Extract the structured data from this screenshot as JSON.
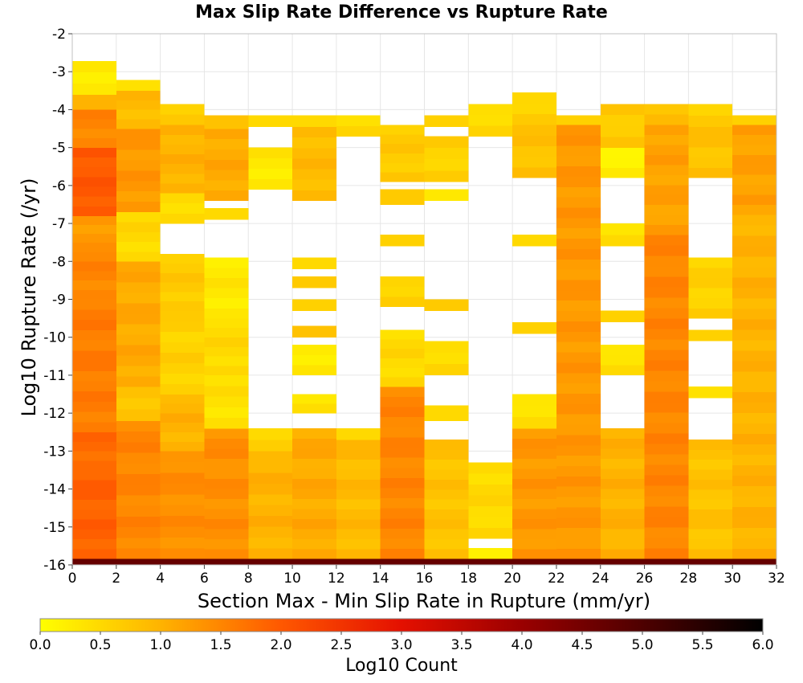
{
  "chart_data": {
    "type": "heatmap",
    "title": "Max Slip Rate Difference vs Rupture Rate",
    "xlabel": "Section Max - Min Slip Rate in Rupture (mm/yr)",
    "ylabel": "Log10 Rupture Rate (/yr)",
    "xlim": [
      0,
      32
    ],
    "ylim": [
      -16,
      -2
    ],
    "x_ticks": [
      "0",
      "2",
      "4",
      "6",
      "8",
      "10",
      "12",
      "14",
      "16",
      "18",
      "20",
      "22",
      "24",
      "26",
      "28",
      "30",
      "32"
    ],
    "y_ticks": [
      "-2",
      "-3",
      "-4",
      "-5",
      "-6",
      "-7",
      "-8",
      "-9",
      "-10",
      "-11",
      "-12",
      "-13",
      "-14",
      "-15",
      "-16"
    ],
    "x_bin_width": 2,
    "y_bin_height": 0.2727,
    "colorbar": {
      "label": "Log10 Count",
      "min": 0.0,
      "max": 6.0,
      "ticks": [
        "0.0",
        "0.5",
        "1.0",
        "1.5",
        "2.0",
        "2.5",
        "3.0",
        "3.5",
        "4.0",
        "4.5",
        "5.0",
        "5.5",
        "6.0"
      ],
      "colors": [
        "#ffff00",
        "#ffb300",
        "#ff5800",
        "#e41000",
        "#9a0000",
        "#4e0000",
        "#000000"
      ]
    },
    "grid": true,
    "columns": [
      {
        "x": 1,
        "cells": [
          {
            "y": [
              -16,
              -15.84
            ],
            "v": 4.7
          },
          {
            "y": [
              -15.84,
              -13.5
            ],
            "v": 1.9
          },
          {
            "y": [
              -13.5,
              -12.5
            ],
            "v": 1.8
          },
          {
            "y": [
              -12.5,
              -9.0
            ],
            "v": 1.6
          },
          {
            "y": [
              -9.0,
              -7.5
            ],
            "v": 1.5
          },
          {
            "y": [
              -7.5,
              -6.8
            ],
            "v": 1.3
          },
          {
            "y": [
              -6.8,
              -5.0
            ],
            "v": 2.0
          },
          {
            "y": [
              -5.0,
              -4.0
            ],
            "v": 1.5
          },
          {
            "y": [
              -4.0,
              -3.6
            ],
            "v": 1.0
          },
          {
            "y": [
              -3.6,
              -2.72
            ],
            "v": 0.3
          }
        ]
      },
      {
        "x": 3,
        "cells": [
          {
            "y": [
              -16,
              -15.84
            ],
            "v": 4.7
          },
          {
            "y": [
              -15.84,
              -12.2
            ],
            "v": 1.5
          },
          {
            "y": [
              -12.2,
              -11.3
            ],
            "v": 0.8
          },
          {
            "y": [
              -11.3,
              -8.0
            ],
            "v": 1.1
          },
          {
            "y": [
              -8.0,
              -6.7
            ],
            "v": 0.5
          },
          {
            "y": [
              -6.7,
              -4.5
            ],
            "v": 1.3
          },
          {
            "y": [
              -4.5,
              -3.5
            ],
            "v": 0.9
          },
          {
            "y": [
              -3.5,
              -3.22
            ],
            "v": 0.4
          }
        ]
      },
      {
        "x": 5,
        "cells": [
          {
            "y": [
              -16,
              -15.84
            ],
            "v": 4.7
          },
          {
            "y": [
              -15.84,
              -13.0
            ],
            "v": 1.4
          },
          {
            "y": [
              -13.0,
              -11.5
            ],
            "v": 1.0
          },
          {
            "y": [
              -11.5,
              -9.3
            ],
            "v": 0.6
          },
          {
            "y": [
              -9.3,
              -7.8
            ],
            "v": 0.7
          },
          {
            "y": [
              -7.8,
              -7.0
            ],
            "v": 0.2,
            "empty": true
          },
          {
            "y": [
              -7.0,
              -6.2
            ],
            "v": 0.5
          },
          {
            "y": [
              -6.2,
              -4.4
            ],
            "v": 1.0
          },
          {
            "y": [
              -4.4,
              -3.85
            ],
            "v": 0.7
          }
        ]
      },
      {
        "x": 7,
        "cells": [
          {
            "y": [
              -16,
              -15.84
            ],
            "v": 4.7
          },
          {
            "y": [
              -15.84,
              -12.4
            ],
            "v": 1.4
          },
          {
            "y": [
              -12.4,
              -11.0
            ],
            "v": 0.4
          },
          {
            "y": [
              -11.0,
              -9.5
            ],
            "v": 0.5
          },
          {
            "y": [
              -9.5,
              -7.9
            ],
            "v": 0.3
          },
          {
            "y": [
              -6.9,
              -6.6
            ],
            "v": 0.5
          },
          {
            "y": [
              -6.4,
              -4.5
            ],
            "v": 1.1
          },
          {
            "y": [
              -4.5,
              -4.15
            ],
            "v": 0.8
          }
        ]
      },
      {
        "x": 9,
        "cells": [
          {
            "y": [
              -16,
              -15.84
            ],
            "v": 4.7
          },
          {
            "y": [
              -15.84,
              -13.0
            ],
            "v": 1.0
          },
          {
            "y": [
              -13.0,
              -12.4
            ],
            "v": 0.6
          },
          {
            "y": [
              -6.1,
              -5.0
            ],
            "v": 0.3
          },
          {
            "y": [
              -4.45,
              -4.15
            ],
            "v": 0.5
          }
        ]
      },
      {
        "x": 11,
        "cells": [
          {
            "y": [
              -16,
              -15.84
            ],
            "v": 4.7
          },
          {
            "y": [
              -15.84,
              -12.4
            ],
            "v": 1.1
          },
          {
            "y": [
              -12.0,
              -11.5
            ],
            "v": 0.4
          },
          {
            "y": [
              -11.0,
              -10.2
            ],
            "v": 0.3
          },
          {
            "y": [
              -10.0,
              -9.7
            ],
            "v": 0.8
          },
          {
            "y": [
              -9.3,
              -9.0
            ],
            "v": 0.6
          },
          {
            "y": [
              -8.7,
              -8.4
            ],
            "v": 0.7
          },
          {
            "y": [
              -8.2,
              -7.9
            ],
            "v": 0.5
          },
          {
            "y": [
              -6.4,
              -4.45
            ],
            "v": 0.9
          },
          {
            "y": [
              -4.45,
              -4.15
            ],
            "v": 0.5
          }
        ]
      },
      {
        "x": 13,
        "cells": [
          {
            "y": [
              -16,
              -15.84
            ],
            "v": 4.7
          },
          {
            "y": [
              -15.84,
              -12.7
            ],
            "v": 0.9
          },
          {
            "y": [
              -12.7,
              -12.4
            ],
            "v": 0.5
          },
          {
            "y": [
              -4.7,
              -4.15
            ],
            "v": 0.5
          }
        ]
      },
      {
        "x": 15,
        "cells": [
          {
            "y": [
              -16,
              -15.84
            ],
            "v": 4.7
          },
          {
            "y": [
              -15.84,
              -11.3
            ],
            "v": 1.5
          },
          {
            "y": [
              -11.3,
              -9.8
            ],
            "v": 0.5
          },
          {
            "y": [
              -9.2,
              -8.4
            ],
            "v": 0.6
          },
          {
            "y": [
              -7.6,
              -7.3
            ],
            "v": 0.6
          },
          {
            "y": [
              -6.5,
              -6.1
            ],
            "v": 0.7
          },
          {
            "y": [
              -5.9,
              -4.4
            ],
            "v": 0.7
          }
        ]
      },
      {
        "x": 17,
        "cells": [
          {
            "y": [
              -16,
              -15.84
            ],
            "v": 4.7
          },
          {
            "y": [
              -15.84,
              -12.7
            ],
            "v": 0.8
          },
          {
            "y": [
              -12.2,
              -11.8
            ],
            "v": 0.5
          },
          {
            "y": [
              -11.0,
              -10.1
            ],
            "v": 0.5
          },
          {
            "y": [
              -9.3,
              -9.0
            ],
            "v": 0.7
          },
          {
            "y": [
              -6.4,
              -6.1
            ],
            "v": 0.3
          },
          {
            "y": [
              -5.9,
              -4.7
            ],
            "v": 0.6
          },
          {
            "y": [
              -4.45,
              -4.15
            ],
            "v": 0.6
          }
        ]
      },
      {
        "x": 19,
        "cells": [
          {
            "y": [
              -16,
              -15.84
            ],
            "v": 4.7
          },
          {
            "y": [
              -15.84,
              -15.55
            ],
            "v": 0.2
          },
          {
            "y": [
              -15.3,
              -13.3
            ],
            "v": 0.5
          },
          {
            "y": [
              -4.7,
              -3.85
            ],
            "v": 0.5
          }
        ]
      },
      {
        "x": 21,
        "cells": [
          {
            "y": [
              -16,
              -15.84
            ],
            "v": 4.7
          },
          {
            "y": [
              -15.84,
              -12.4
            ],
            "v": 1.3
          },
          {
            "y": [
              -12.4,
              -11.5
            ],
            "v": 0.4
          },
          {
            "y": [
              -9.9,
              -9.6
            ],
            "v": 0.6
          },
          {
            "y": [
              -7.6,
              -7.3
            ],
            "v": 0.5
          },
          {
            "y": [
              -5.8,
              -4.4
            ],
            "v": 0.8
          },
          {
            "y": [
              -4.4,
              -3.55
            ],
            "v": 0.6
          }
        ]
      },
      {
        "x": 23,
        "cells": [
          {
            "y": [
              -16,
              -15.84
            ],
            "v": 4.7
          },
          {
            "y": [
              -15.84,
              -4.4
            ],
            "v": 1.3
          },
          {
            "y": [
              -4.4,
              -4.15
            ],
            "v": 0.6
          }
        ]
      },
      {
        "x": 25,
        "cells": [
          {
            "y": [
              -16,
              -15.84
            ],
            "v": 4.7
          },
          {
            "y": [
              -15.84,
              -12.4
            ],
            "v": 1.0
          },
          {
            "y": [
              -11.0,
              -10.2
            ],
            "v": 0.4
          },
          {
            "y": [
              -9.6,
              -9.3
            ],
            "v": 0.6
          },
          {
            "y": [
              -7.6,
              -7.0
            ],
            "v": 0.4
          },
          {
            "y": [
              -5.8,
              -5.0
            ],
            "v": 0.2
          },
          {
            "y": [
              -5.0,
              -3.85
            ],
            "v": 0.7
          }
        ]
      },
      {
        "x": 27,
        "cells": [
          {
            "y": [
              -16,
              -15.84
            ],
            "v": 4.7
          },
          {
            "y": [
              -15.84,
              -7.3
            ],
            "v": 1.5
          },
          {
            "y": [
              -7.3,
              -4.4
            ],
            "v": 1.2
          },
          {
            "y": [
              -4.4,
              -3.85
            ],
            "v": 0.8
          }
        ]
      },
      {
        "x": 29,
        "cells": [
          {
            "y": [
              -16,
              -15.84
            ],
            "v": 4.7
          },
          {
            "y": [
              -15.84,
              -12.7
            ],
            "v": 0.8
          },
          {
            "y": [
              -11.6,
              -11.3
            ],
            "v": 0.4
          },
          {
            "y": [
              -10.1,
              -9.8
            ],
            "v": 0.6
          },
          {
            "y": [
              -9.5,
              -7.9
            ],
            "v": 0.6
          },
          {
            "y": [
              -5.8,
              -4.45
            ],
            "v": 0.8
          },
          {
            "y": [
              -4.45,
              -3.85
            ],
            "v": 0.6
          }
        ]
      },
      {
        "x": 31,
        "cells": [
          {
            "y": [
              -16,
              -15.84
            ],
            "v": 4.7
          },
          {
            "y": [
              -15.84,
              -6.5
            ],
            "v": 1.0
          },
          {
            "y": [
              -6.5,
              -4.4
            ],
            "v": 1.2
          },
          {
            "y": [
              -4.4,
              -4.15
            ],
            "v": 0.6
          }
        ]
      }
    ]
  }
}
